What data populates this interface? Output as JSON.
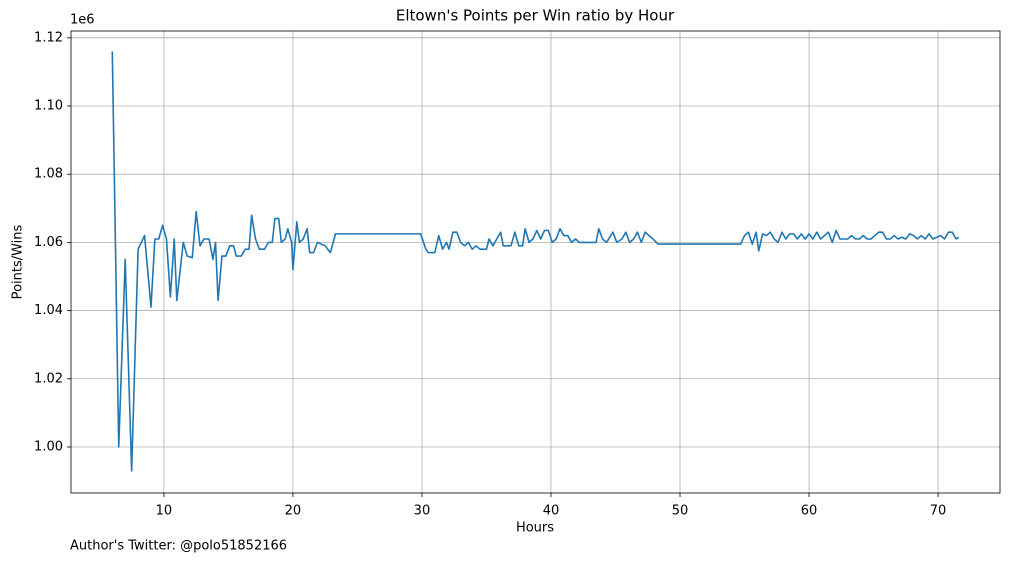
{
  "chart_data": {
    "type": "line",
    "title": "Eltown's Points per Win ratio by Hour",
    "xlabel": "Hours",
    "ylabel": "Points/Wins",
    "y_offset_label": "1e6",
    "footnote": "Author's Twitter: @polo51852166",
    "color": "#1f77b4",
    "grid": true,
    "xlim": [
      2.8,
      74.8
    ],
    "xticks": [
      10,
      20,
      30,
      40,
      50,
      60,
      70
    ],
    "ylim": [
      0.9865,
      1.122
    ],
    "yticks": [
      {
        "value": 1,
        "label": "1.00"
      },
      {
        "value": 1.02,
        "label": "1.02"
      },
      {
        "value": 1.04,
        "label": "1.04"
      },
      {
        "value": 1.06,
        "label": "1.06"
      },
      {
        "value": 1.08,
        "label": "1.08"
      },
      {
        "value": 1.1,
        "label": "1.10"
      },
      {
        "value": 1.12,
        "label": "1.12"
      }
    ],
    "x": [
      6.0,
      6.5,
      7.0,
      7.5,
      8.0,
      8.5,
      9.0,
      9.3,
      9.6,
      9.9,
      10.2,
      10.5,
      10.8,
      11.0,
      11.5,
      11.8,
      12.2,
      12.5,
      12.8,
      13.1,
      13.5,
      13.8,
      14.0,
      14.2,
      14.5,
      14.8,
      15.1,
      15.4,
      15.6,
      16.0,
      16.3,
      16.6,
      16.8,
      17.1,
      17.4,
      17.8,
      18.1,
      18.4,
      18.6,
      18.9,
      19.1,
      19.4,
      19.6,
      19.9,
      20.0,
      20.3,
      20.5,
      20.8,
      21.1,
      21.3,
      21.6,
      21.9,
      22.5,
      22.9,
      23.3,
      29.9,
      30.3,
      30.5,
      31.0,
      31.3,
      31.6,
      31.9,
      32.1,
      32.4,
      32.7,
      33.0,
      33.3,
      33.6,
      33.9,
      34.2,
      34.5,
      35.0,
      35.2,
      35.5,
      35.8,
      36.1,
      36.3,
      36.9,
      37.2,
      37.5,
      37.8,
      38.0,
      38.3,
      38.6,
      38.9,
      39.2,
      39.5,
      39.8,
      40.1,
      40.4,
      40.7,
      41.0,
      41.3,
      41.6,
      41.9,
      42.2,
      43.5,
      43.7,
      44.0,
      44.3,
      44.8,
      45.1,
      45.5,
      45.8,
      46.1,
      46.4,
      46.7,
      47.0,
      47.3,
      47.6,
      47.9,
      48.3,
      54.7,
      55.0,
      55.3,
      55.6,
      55.9,
      56.1,
      56.4,
      56.7,
      57.0,
      57.3,
      57.6,
      57.9,
      58.2,
      58.5,
      58.8,
      59.1,
      59.4,
      59.7,
      60.0,
      60.3,
      60.6,
      60.9,
      61.2,
      61.5,
      61.8,
      62.1,
      62.4,
      62.7,
      63.0,
      63.3,
      63.6,
      63.9,
      64.2,
      64.5,
      64.8,
      65.1,
      65.4,
      65.7,
      66.0,
      66.3,
      66.6,
      66.9,
      67.2,
      67.5,
      67.8,
      68.1,
      68.4,
      68.7,
      69.0,
      69.3,
      69.6,
      69.9,
      70.2,
      70.5,
      70.8,
      71.1,
      71.4,
      71.6
    ],
    "values": [
      1.116,
      1.0,
      1.055,
      0.993,
      1.058,
      1.062,
      1.041,
      1.061,
      1.061,
      1.065,
      1.061,
      1.044,
      1.061,
      1.043,
      1.06,
      1.056,
      1.0555,
      1.069,
      1.059,
      1.061,
      1.061,
      1.055,
      1.06,
      1.043,
      1.056,
      1.056,
      1.059,
      1.059,
      1.056,
      1.056,
      1.058,
      1.058,
      1.068,
      1.061,
      1.058,
      1.058,
      1.06,
      1.06,
      1.067,
      1.067,
      1.06,
      1.061,
      1.064,
      1.06,
      1.052,
      1.066,
      1.06,
      1.061,
      1.064,
      1.057,
      1.057,
      1.06,
      1.059,
      1.057,
      1.0625,
      1.0625,
      1.058,
      1.057,
      1.057,
      1.062,
      1.058,
      1.06,
      1.058,
      1.063,
      1.063,
      1.06,
      1.059,
      1.06,
      1.058,
      1.059,
      1.058,
      1.058,
      1.061,
      1.059,
      1.061,
      1.063,
      1.059,
      1.059,
      1.063,
      1.059,
      1.059,
      1.064,
      1.06,
      1.061,
      1.0635,
      1.061,
      1.0635,
      1.0635,
      1.06,
      1.061,
      1.064,
      1.062,
      1.062,
      1.06,
      1.061,
      1.06,
      1.06,
      1.064,
      1.061,
      1.06,
      1.063,
      1.06,
      1.061,
      1.063,
      1.06,
      1.061,
      1.063,
      1.06,
      1.063,
      1.062,
      1.061,
      1.0595,
      1.0595,
      1.062,
      1.063,
      1.0595,
      1.063,
      1.0575,
      1.0625,
      1.062,
      1.063,
      1.061,
      1.06,
      1.063,
      1.061,
      1.0625,
      1.0625,
      1.061,
      1.0625,
      1.061,
      1.0625,
      1.061,
      1.063,
      1.061,
      1.062,
      1.063,
      1.06,
      1.0635,
      1.061,
      1.061,
      1.061,
      1.062,
      1.061,
      1.061,
      1.062,
      1.061,
      1.061,
      1.062,
      1.063,
      1.063,
      1.061,
      1.061,
      1.062,
      1.061,
      1.0615,
      1.061,
      1.0625,
      1.062,
      1.061,
      1.062,
      1.061,
      1.0625,
      1.061,
      1.0615,
      1.062,
      1.061,
      1.063,
      1.063,
      1.061,
      1.0615
    ]
  }
}
